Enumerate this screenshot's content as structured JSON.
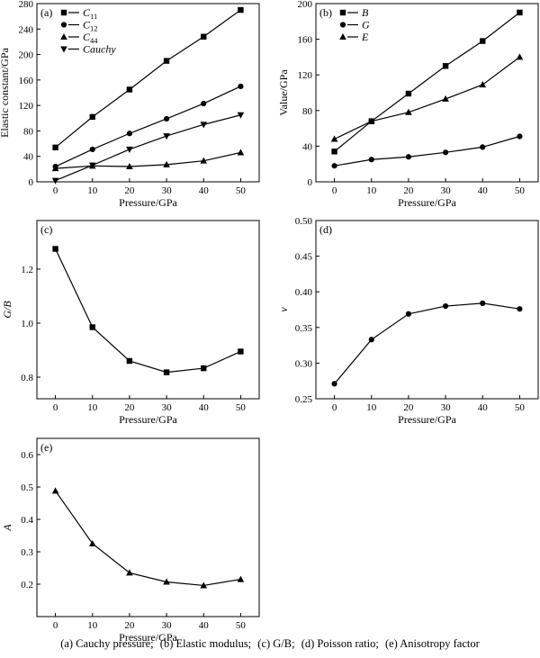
{
  "caption": {
    "a": "(a)   Cauchy   pressure;",
    "b": "(b)   Elastic  modulus;",
    "c": "(c)   G/B;",
    "d": "(d)   Poisson  ratio;",
    "e": "(e) Anisotropy factor"
  },
  "chart_data": [
    {
      "id": "a",
      "panel_label": "(a)",
      "type": "line",
      "xlabel": "Pressure/GPa",
      "ylabel": "Elastic constant/GPa",
      "x": [
        0,
        10,
        20,
        30,
        40,
        50
      ],
      "xlim": [
        -5,
        55
      ],
      "xticks": [
        0,
        10,
        20,
        30,
        40,
        50
      ],
      "ylim": [
        0,
        280
      ],
      "yticks": [
        0,
        40,
        80,
        120,
        160,
        200,
        240,
        280
      ],
      "tick_decimals": 0,
      "legend_position": "top-left",
      "series": [
        {
          "name": "C11",
          "name_main": "C",
          "name_sub": "11",
          "marker": "square",
          "values": [
            54,
            102,
            145,
            190,
            228,
            270
          ]
        },
        {
          "name": "C12",
          "name_main": "C",
          "name_sub": "12",
          "marker": "circle",
          "values": [
            24,
            51,
            76,
            99,
            123,
            150
          ]
        },
        {
          "name": "C44",
          "name_main": "C",
          "name_sub": "44",
          "marker": "triangle-up",
          "values": [
            21,
            25,
            24,
            27,
            33,
            46
          ]
        },
        {
          "name": "Cauchy",
          "name_main": "Cauchy",
          "name_sub": "",
          "marker": "triangle-down",
          "upright": true,
          "values": [
            2,
            26,
            51,
            72,
            90,
            105
          ]
        }
      ]
    },
    {
      "id": "b",
      "panel_label": "(b)",
      "type": "line",
      "xlabel": "Pressure/GPa",
      "ylabel": "Value/GPa",
      "x": [
        0,
        10,
        20,
        30,
        40,
        50
      ],
      "xlim": [
        -5,
        55
      ],
      "xticks": [
        0,
        10,
        20,
        30,
        40,
        50
      ],
      "ylim": [
        0,
        200
      ],
      "yticks": [
        0,
        40,
        80,
        120,
        160,
        200
      ],
      "tick_decimals": 0,
      "legend_position": "top-left",
      "series": [
        {
          "name": "B",
          "name_main": "B",
          "name_sub": "",
          "marker": "square",
          "values": [
            34,
            68,
            99,
            130,
            158,
            190
          ]
        },
        {
          "name": "G",
          "name_main": "G",
          "name_sub": "",
          "marker": "circle",
          "values": [
            18,
            25,
            28,
            33,
            39,
            51
          ]
        },
        {
          "name": "E",
          "name_main": "E",
          "name_sub": "",
          "marker": "triangle-up",
          "values": [
            48,
            68,
            78,
            93,
            109,
            140
          ]
        }
      ]
    },
    {
      "id": "c",
      "panel_label": "(c)",
      "type": "line",
      "xlabel": "Pressure/GPa",
      "ylabel": "G/B",
      "ylabel_italic": true,
      "x": [
        0,
        10,
        20,
        30,
        40,
        50
      ],
      "xlim": [
        -5,
        55
      ],
      "xticks": [
        0,
        10,
        20,
        30,
        40,
        50
      ],
      "ylim": [
        0.72,
        1.38
      ],
      "yticks": [
        0.8,
        1.0,
        1.2
      ],
      "tick_decimals": 1,
      "series": [
        {
          "marker": "square",
          "values": [
            1.275,
            0.985,
            0.86,
            0.818,
            0.833,
            0.895
          ]
        }
      ]
    },
    {
      "id": "d",
      "panel_label": "(d)",
      "type": "line",
      "xlabel": "Pressure/GPa",
      "ylabel": "v",
      "ylabel_italic": true,
      "x": [
        0,
        10,
        20,
        30,
        40,
        50
      ],
      "xlim": [
        -5,
        55
      ],
      "xticks": [
        0,
        10,
        20,
        30,
        40,
        50
      ],
      "ylim": [
        0.25,
        0.5
      ],
      "yticks": [
        0.25,
        0.3,
        0.35,
        0.4,
        0.45,
        0.5
      ],
      "tick_decimals": 2,
      "series": [
        {
          "marker": "circle",
          "values": [
            0.271,
            0.333,
            0.369,
            0.38,
            0.384,
            0.376
          ]
        }
      ]
    },
    {
      "id": "e",
      "panel_label": "(e)",
      "type": "line",
      "xlabel": "Pressure/GPa",
      "ylabel": "A",
      "ylabel_italic": true,
      "x": [
        0,
        10,
        20,
        30,
        40,
        50
      ],
      "xlim": [
        -5,
        55
      ],
      "xticks": [
        0,
        10,
        20,
        30,
        40,
        50
      ],
      "ylim": [
        0.1,
        0.65
      ],
      "yticks": [
        0.2,
        0.3,
        0.4,
        0.5,
        0.6
      ],
      "tick_decimals": 1,
      "series": [
        {
          "marker": "triangle-up",
          "values": [
            0.488,
            0.325,
            0.235,
            0.207,
            0.196,
            0.215
          ]
        }
      ]
    }
  ]
}
